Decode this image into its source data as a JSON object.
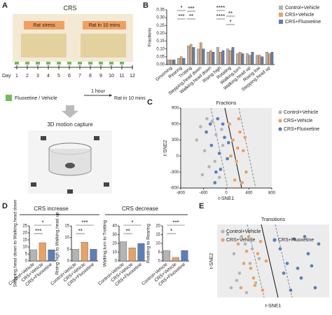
{
  "panel_labels": [
    "A",
    "B",
    "C",
    "D",
    "E"
  ],
  "diagram": {
    "title": "CRS",
    "boxes": [
      "Rat stress",
      "Rat in 10 mins"
    ],
    "day_label": "Day",
    "days": [
      1,
      2,
      3,
      4,
      5,
      6,
      7,
      8,
      9,
      10,
      11,
      12
    ],
    "legend": "Fluoxetine / Vehicle",
    "arrow_label": "1 hour",
    "arrow_target": "Rat in 10 mins",
    "capture": "3D motion capture"
  },
  "groups": [
    "CRS increase",
    "CRS decrease"
  ],
  "chart_data": [
    {
      "type": "bar",
      "ylabel": "Fractions",
      "categories": [
        "Grooming",
        "Rearing",
        "Trotting",
        "Stepping,head down",
        "Walking,head down",
        "Rising high",
        "Rotating",
        "Walking,turn",
        "Walking,head up",
        "Rising low",
        "Stepping,head up"
      ],
      "series": [
        {
          "name": "Control+Vehicle",
          "color": "#b5b5b5",
          "values": [
            0.03,
            0.04,
            0.12,
            0.1,
            0.08,
            0.11,
            0.1,
            0.07,
            0.07,
            0.06,
            0.08
          ]
        },
        {
          "name": "CRS+Vehicle",
          "color": "#e9a262",
          "values": [
            0.03,
            0.05,
            0.13,
            0.14,
            0.09,
            0.08,
            0.09,
            0.08,
            0.06,
            0.06,
            0.07
          ]
        },
        {
          "name": "CRS+Fluoxetine",
          "color": "#5b7fb8",
          "values": [
            0.03,
            0.04,
            0.11,
            0.1,
            0.08,
            0.09,
            0.11,
            0.07,
            0.08,
            0.05,
            0.08
          ]
        }
      ],
      "ylim": [
        0,
        0.35
      ],
      "yticks": [
        {
          "value": 0,
          "label": "0.00"
        },
        {
          "value": 0.05,
          "label": "0.05"
        },
        {
          "value": 0.1,
          "label": "0.10"
        },
        {
          "value": 0.15,
          "label": "0.15"
        },
        {
          "value": 0.2,
          "label": "0.20"
        },
        {
          "value": 0.25,
          "label": "0.25"
        },
        {
          "value": 0.3,
          "label": "0.30"
        },
        {
          "value": 0.35,
          "label": "0.35"
        }
      ],
      "annotations": [
        "*",
        "***",
        "***",
        "**",
        "****",
        "****",
        "*",
        "**"
      ]
    },
    {
      "type": "scatter",
      "title": "Fractions",
      "xlabel": "t-SNE1",
      "ylabel": "t-SNE2",
      "xlim": [
        -800,
        800
      ],
      "xticks": [
        -800,
        -400,
        0,
        400,
        800
      ],
      "ylim": [
        -600,
        900
      ],
      "yticks": [
        -600,
        -300,
        0,
        300,
        600,
        900
      ],
      "series": [
        {
          "name": "Control+Vehicle",
          "color": "#b5b5b5",
          "x": [
            -520,
            -450,
            -380,
            -300,
            -250,
            -180,
            -120,
            -60,
            -420,
            -340,
            -200,
            -80
          ],
          "y": [
            300,
            550,
            100,
            -200,
            650,
            400,
            -400,
            200,
            -350,
            700,
            -100,
            500
          ]
        },
        {
          "name": "CRS+Vehicle",
          "color": "#e9a262",
          "x": [
            60,
            120,
            180,
            240,
            300,
            350,
            150,
            220,
            80,
            280,
            330,
            200
          ],
          "y": [
            600,
            300,
            -100,
            450,
            100,
            -300,
            -450,
            700,
            0,
            -500,
            350,
            150
          ]
        },
        {
          "name": "CRS+Fluoxetine",
          "color": "#5b7fb8",
          "x": [
            -350,
            -260,
            -150,
            -100,
            -30,
            20,
            -200,
            -120,
            -280,
            -60,
            40,
            -180
          ],
          "y": [
            450,
            200,
            700,
            -250,
            350,
            -50,
            -500,
            50,
            600,
            600,
            250,
            -300
          ]
        }
      ]
    },
    {
      "type": "bar",
      "ylabel": "Stepping,head down to Walking,head down",
      "categories": [
        "Control+Vehicle",
        "CRS+Vehicle",
        "CRS+Fluoxetine"
      ],
      "colors": [
        "#b5b5b5",
        "#e9a262",
        "#5b7fb8"
      ],
      "values": [
        8,
        13,
        8
      ],
      "ylim": [
        0,
        25
      ],
      "yticks": [
        0,
        5,
        10,
        15,
        20,
        25
      ],
      "annotations": [
        "***",
        "*"
      ]
    },
    {
      "type": "bar",
      "ylabel": "Rising high to Walking,head up",
      "categories": [
        "Control+Vehicle",
        "CRS+Vehicle",
        "CRS+Fluoxetine"
      ],
      "colors": [
        "#b5b5b5",
        "#e9a262",
        "#5b7fb8"
      ],
      "values": [
        5,
        8,
        5
      ],
      "ylim": [
        0,
        15
      ],
      "yticks": [
        0,
        5,
        10,
        15
      ],
      "annotations": [
        "**",
        "***"
      ]
    },
    {
      "type": "bar",
      "ylabel": "Walking,turn to Trotting",
      "categories": [
        "Control+Vehicle",
        "CRS+Vehicle",
        "CRS+Fluoxetine"
      ],
      "colors": [
        "#b5b5b5",
        "#e9a262",
        "#5b7fb8"
      ],
      "values": [
        22,
        15,
        20
      ],
      "ylim": [
        0,
        40
      ],
      "yticks": [
        0,
        10,
        20,
        30,
        40
      ],
      "annotations": [
        "**",
        "*"
      ]
    },
    {
      "type": "bar",
      "ylabel": "Rotating to Rearing",
      "categories": [
        "Control+Vehicle",
        "CRS+Vehicle",
        "CRS+Fluoxetine"
      ],
      "colors": [
        "#b5b5b5",
        "#e9a262",
        "#5b7fb8"
      ],
      "values": [
        6,
        2,
        6
      ],
      "ylim": [
        0,
        20
      ],
      "yticks": [
        0,
        5,
        10,
        15,
        20
      ],
      "annotations": [
        "*",
        "***"
      ]
    },
    {
      "type": "scatter",
      "title": "Transitions",
      "xlabel": "t-SNE1",
      "ylabel": "t-SNE2",
      "xlim": [
        -800,
        800
      ],
      "ylim": [
        -600,
        900
      ],
      "series": [
        {
          "name": "Control+Vehicle",
          "color": "#b5b5b5",
          "x": [
            -650,
            -560,
            -480,
            -400,
            -330,
            -250,
            -600,
            -450,
            -300,
            -520,
            -380,
            -200
          ],
          "y": [
            700,
            300,
            -100,
            500,
            100,
            -300,
            -400,
            650,
            400,
            -250,
            -500,
            200
          ]
        },
        {
          "name": "CRS+Vehicle",
          "color": "#e9a262",
          "x": [
            -500,
            -420,
            -350,
            -280,
            -220,
            -150,
            -100,
            -460,
            -320,
            -180,
            -260,
            -380
          ],
          "y": [
            500,
            100,
            650,
            -200,
            300,
            -450,
            150,
            -400,
            0,
            550,
            -350,
            350
          ]
        },
        {
          "name": "CRS+Fluoxetine",
          "color": "#5b7fb8",
          "x": [
            100,
            200,
            300,
            400,
            500,
            600,
            650,
            250,
            350,
            450,
            550,
            150
          ],
          "y": [
            400,
            100,
            600,
            -200,
            300,
            -400,
            500,
            -450,
            0,
            650,
            50,
            -100
          ]
        }
      ]
    }
  ]
}
